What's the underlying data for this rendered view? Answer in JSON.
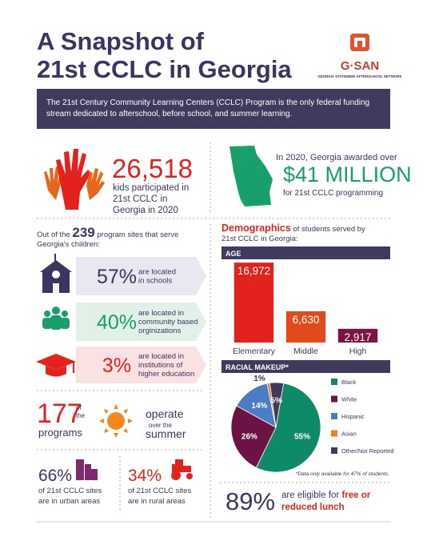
{
  "header": {
    "title": [
      "A Snapshot of",
      "21st CCLC in Georgia"
    ],
    "logo": "G·SAN",
    "logo_tagline": "GEORGIA STATEWIDE AFTERSCHOOL NETWORK"
  },
  "intro": [
    "The 21st Century Community Learning Centers (CCLC) Program is the only federal funding",
    "stream dedicated to afterschool, before school, and summer learning."
  ],
  "participation": {
    "number": "26,518",
    "text": [
      "kids participated in",
      "21st CCLC in",
      "Georgia in 2020"
    ]
  },
  "funding": {
    "lead": "In 2020, Georgia awarded over",
    "amount": "$41 MILLION",
    "tail": "for 21st CCLC programming"
  },
  "sites": {
    "intro_pre": "Out of the",
    "count": "239",
    "intro_post": "program sites that serve",
    "intro_line2": "Georgia's children:",
    "rows": [
      {
        "percent": "57%",
        "text": [
          "are located",
          "in schools"
        ]
      },
      {
        "percent": "40%",
        "text": [
          "are located in",
          "community based",
          "orginizations"
        ]
      },
      {
        "percent": "3%",
        "text": [
          "are located in",
          "institutions of",
          "higher education"
        ]
      }
    ]
  },
  "summer": {
    "number": "177",
    "of": "of",
    "the": "the",
    "programs": "programs",
    "operate": "operate",
    "over": "over the",
    "summer": "summer"
  },
  "locations": [
    {
      "percent": "66%",
      "text": [
        "of 21st CCLC sites",
        "are in urban areas"
      ]
    },
    {
      "percent": "34%",
      "text": [
        "of 21st CCLC sites",
        "are in rural areas"
      ]
    }
  ],
  "demographics": {
    "heading": "Demographics",
    "heading_rest": "of students served by",
    "line2": "21st CCLC in Georgia:"
  },
  "chart_data": [
    {
      "type": "bar",
      "title": "AGE",
      "categories": [
        "Elementary",
        "Middle",
        "High"
      ],
      "values": [
        16972,
        6630,
        2917
      ],
      "value_labels": [
        "16,972",
        "6,630",
        "2,917"
      ],
      "colors": [
        "#e3211d",
        "#e24a1c",
        "#7b1343"
      ],
      "ylim": [
        0,
        17000
      ]
    },
    {
      "type": "pie",
      "title": "RACIAL MAKEUP*",
      "categories": [
        "Black",
        "White",
        "Hispanic",
        "Asian",
        "Other/Not Reported"
      ],
      "values": [
        55,
        26,
        14,
        1,
        5
      ],
      "value_labels": [
        "55%",
        "26%",
        "14%",
        "1%",
        "5%"
      ],
      "colors": [
        "#0f8a68",
        "#6c1244",
        "#4a7dc6",
        "#e8822a",
        "#3f3a5c"
      ],
      "note": "*Data only available for 47% of students."
    }
  ],
  "lunch": {
    "percent": "89%",
    "text": "are eligible for",
    "highlight": [
      "free or",
      "reduced lunch"
    ]
  }
}
